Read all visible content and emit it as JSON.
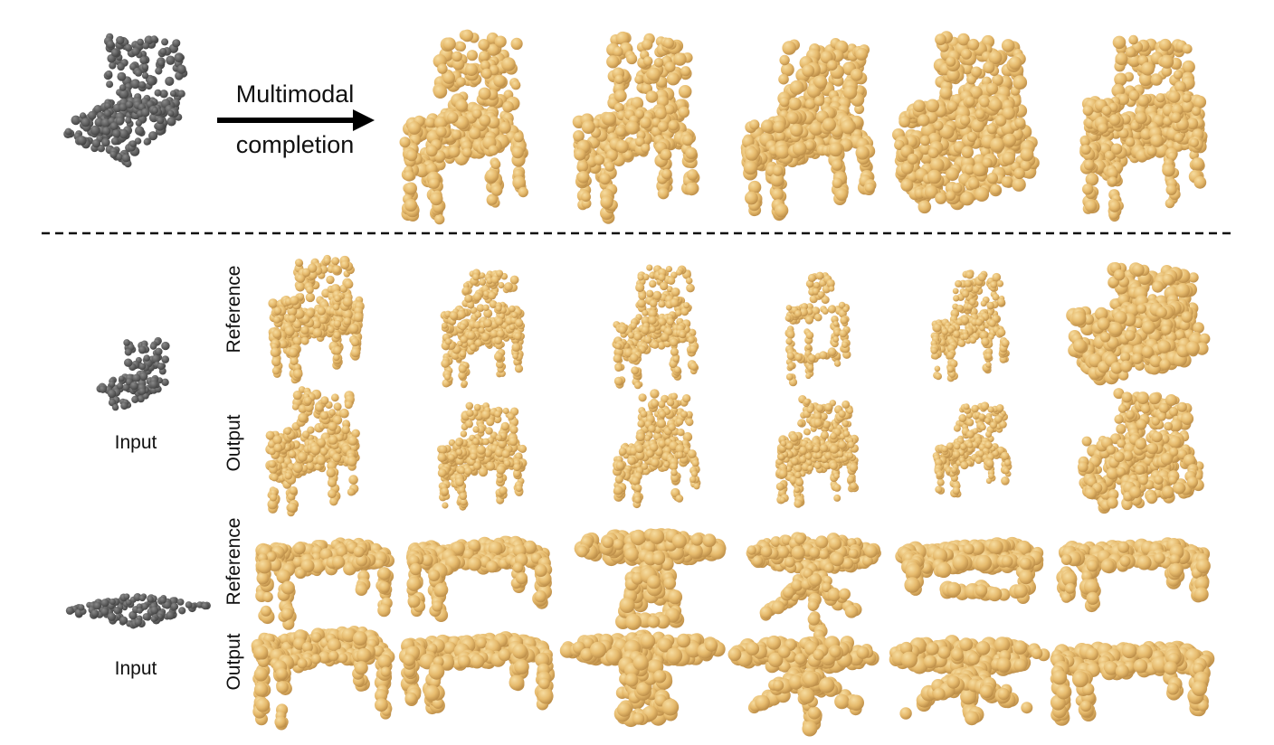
{
  "top_section": {
    "arrow_label_line1": "Multimodal",
    "arrow_label_line2": "completion"
  },
  "chair_block": {
    "input_label": "Input",
    "row_labels": [
      "Reference",
      "Output"
    ]
  },
  "table_block": {
    "input_label": "Input",
    "row_labels": [
      "Reference",
      "Output"
    ]
  },
  "colors": {
    "input_points": "#6b6b6b",
    "output_points": "#e8bf72",
    "divider": "#111111"
  },
  "icons": {
    "arrow": "right-arrow-icon"
  }
}
